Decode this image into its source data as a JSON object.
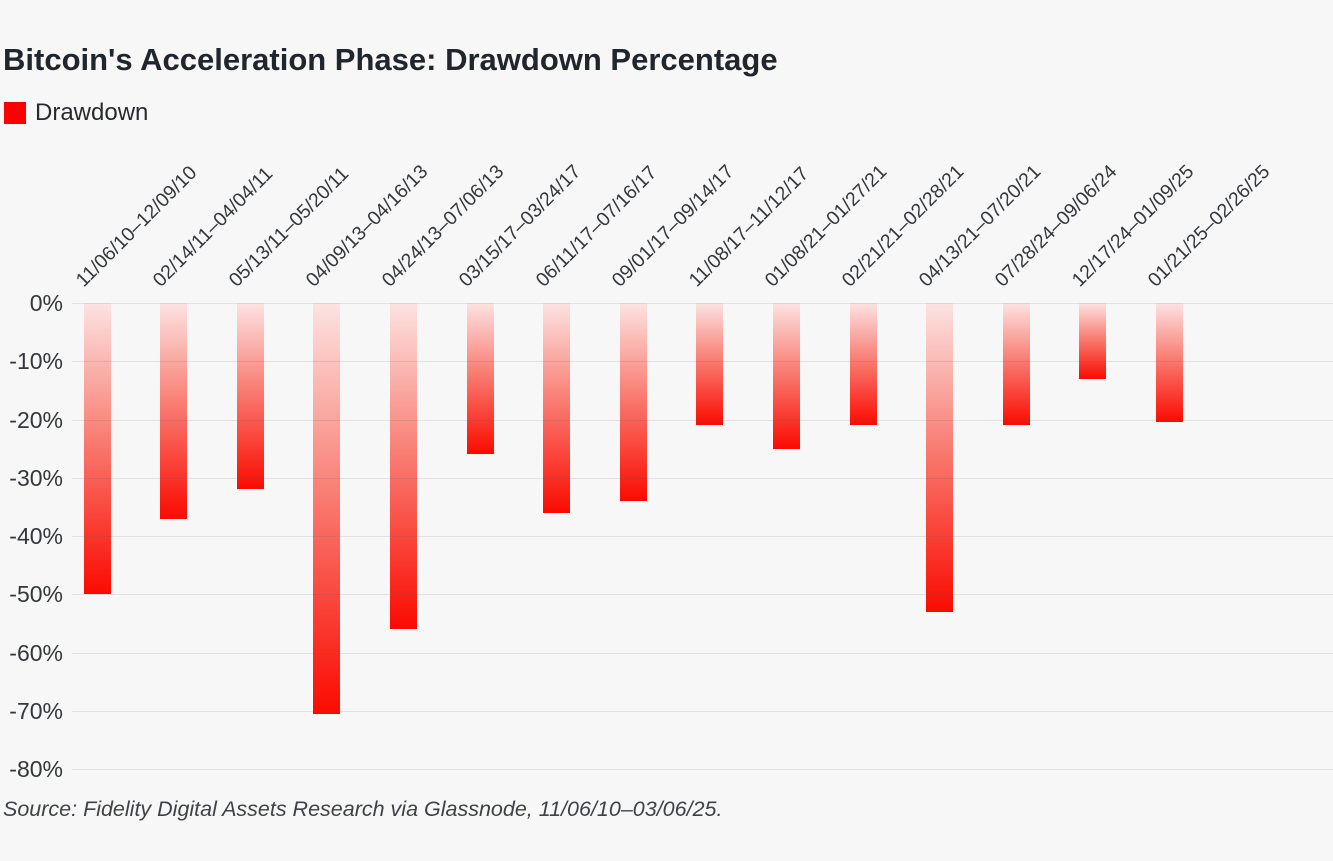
{
  "chart_data": {
    "type": "bar",
    "title": "Bitcoin's Acceleration Phase: Drawdown Percentage",
    "legend": "Drawdown",
    "legend_position": "top-left",
    "source": "Source: Fidelity Digital Assets Research via Glassnode, 11/06/10–03/06/25.",
    "categories": [
      "11/06/10–12/09/10",
      "02/14/11–04/04/11",
      "05/13/11–05/20/11",
      "04/09/13–04/16/13",
      "04/24/13–07/06/13",
      "03/15/17–03/24/17",
      "06/11/17–07/16/17",
      "09/01/17–09/14/17",
      "11/08/17–11/12/17",
      "01/08/21–01/27/21",
      "02/21/21–02/28/21",
      "04/13/21–07/20/21",
      "07/28/24–09/06/24",
      "12/17/24–01/09/25",
      "01/21/25–02/26/25"
    ],
    "values": [
      -50,
      -37,
      -32,
      -70.5,
      -56,
      -26,
      -36,
      -34,
      -21,
      -25,
      -21,
      -53,
      -21,
      -13,
      -20.5
    ],
    "series_name": "Drawdown",
    "xlabel": "",
    "ylabel": "",
    "ylim": [
      -80,
      0
    ],
    "ytick_step": -10,
    "yticks": [
      "0%",
      "-10%",
      "-20%",
      "-30%",
      "-40%",
      "-50%",
      "-60%",
      "-70%",
      "-80%"
    ],
    "grid": "horizontal",
    "bar_gradient_top": "#fce3e2",
    "bar_gradient_bottom": "#fa0b01",
    "legend_swatch_color": "#fe0000",
    "background_color": "#f7f7f8"
  }
}
